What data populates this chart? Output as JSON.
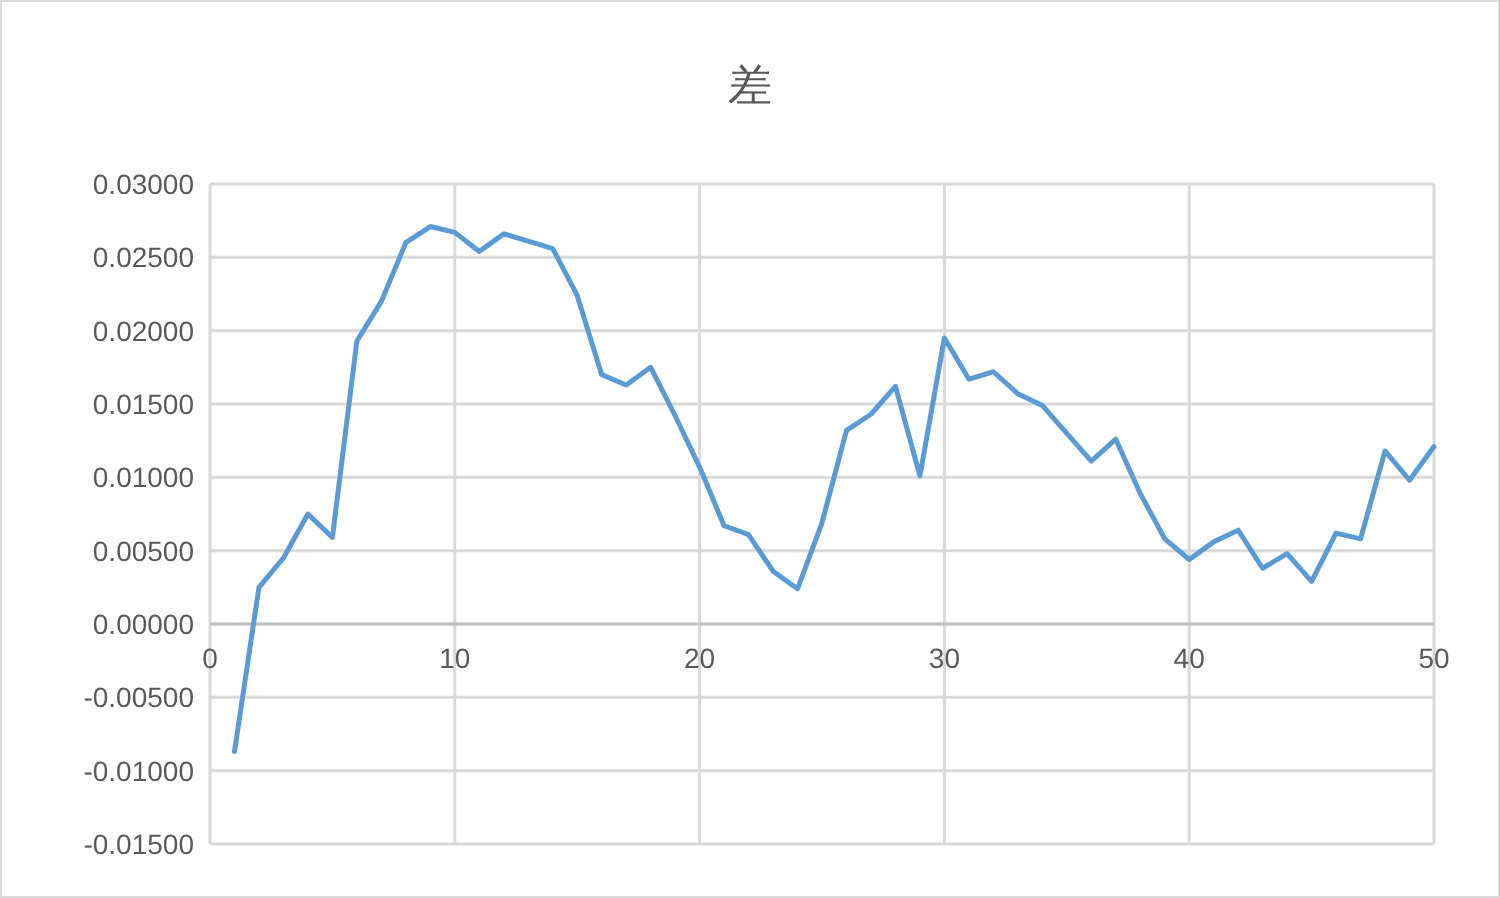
{
  "chart_data": {
    "type": "line",
    "title": "差",
    "x": [
      1,
      2,
      3,
      4,
      5,
      6,
      7,
      8,
      9,
      10,
      11,
      12,
      13,
      14,
      15,
      16,
      17,
      18,
      19,
      20,
      21,
      22,
      23,
      24,
      25,
      26,
      27,
      28,
      29,
      30,
      31,
      32,
      33,
      34,
      35,
      36,
      37,
      38,
      39,
      40,
      41,
      42,
      43,
      44,
      45,
      46,
      47,
      48,
      49,
      50
    ],
    "series": [
      {
        "color": "#5b9bd5",
        "values": [
          -0.0087,
          0.0025,
          0.0045,
          0.0075,
          0.0059,
          0.0193,
          0.022,
          0.026,
          0.0271,
          0.0267,
          0.0254,
          0.0266,
          0.0261,
          0.0256,
          0.0224,
          0.017,
          0.0163,
          0.0175,
          0.0142,
          0.0107,
          0.0067,
          0.0061,
          0.0036,
          0.0024,
          0.0069,
          0.0132,
          0.0143,
          0.0162,
          0.0101,
          0.0195,
          0.0167,
          0.0172,
          0.0157,
          0.0149,
          0.013,
          0.0111,
          0.0126,
          0.0089,
          0.0058,
          0.0044,
          0.0056,
          0.0064,
          0.0038,
          0.0048,
          0.0029,
          0.0062,
          0.0058,
          0.0118,
          0.0098,
          0.0121
        ]
      }
    ],
    "xlim": [
      0,
      50
    ],
    "xticks": [
      0,
      10,
      20,
      30,
      40,
      50
    ],
    "ylim": [
      -0.015,
      0.03
    ],
    "yticks": [
      {
        "value": -0.015,
        "label": "-0.01500"
      },
      {
        "value": -0.01,
        "label": "-0.01000"
      },
      {
        "value": -0.005,
        "label": "-0.00500"
      },
      {
        "value": 0,
        "label": "0.00000"
      },
      {
        "value": 0.005,
        "label": "0.00500"
      },
      {
        "value": 0.01,
        "label": "0.01000"
      },
      {
        "value": 0.015,
        "label": "0.01500"
      },
      {
        "value": 0.02,
        "label": "0.02000"
      },
      {
        "value": 0.025,
        "label": "0.02500"
      },
      {
        "value": 0.03,
        "label": "0.03000"
      }
    ],
    "grid": true,
    "line_style": "solid"
  }
}
